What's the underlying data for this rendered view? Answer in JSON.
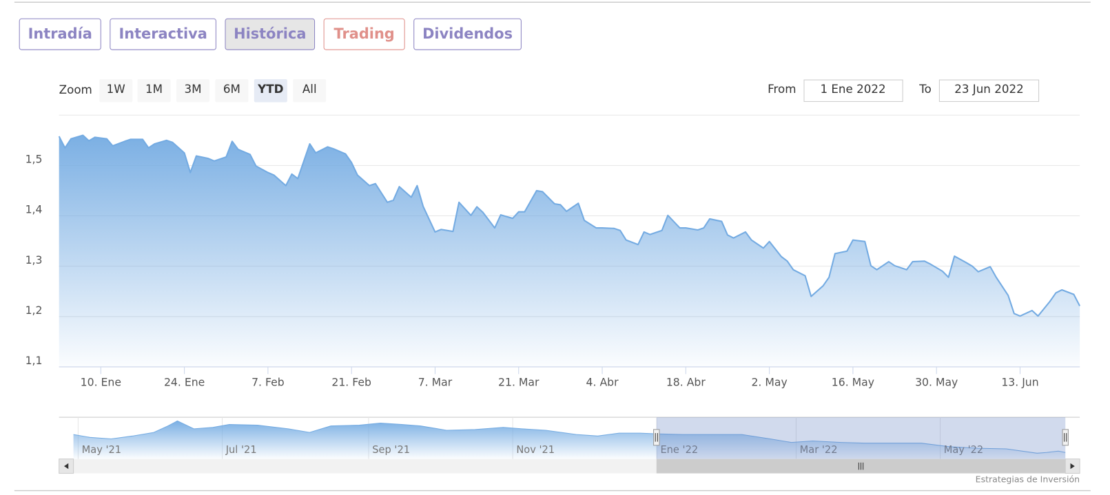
{
  "tabs": [
    "Intradía",
    "Interactiva",
    "Histórica",
    "Trading",
    "Dividendos"
  ],
  "tab_colors": [
    "#8c84c2",
    "#8c84c2",
    "#8c84c2",
    "#e0908a",
    "#8c84c2"
  ],
  "active_tab": "Histórica",
  "zoom": {
    "label": "Zoom",
    "buttons": [
      "1W",
      "1M",
      "3M",
      "6M",
      "YTD",
      "All"
    ],
    "selected": "YTD"
  },
  "date_range": {
    "from_label": "From",
    "from": "1 Ene 2022",
    "to_label": "To",
    "to": "23 Jun 2022"
  },
  "credits": "Estrategias de Inversión",
  "chart_data": [
    {
      "type": "area",
      "color": "#74abe2",
      "grid": true,
      "x": [
        3,
        4,
        5,
        7,
        8,
        9,
        11,
        12,
        14,
        15,
        17,
        18,
        19,
        21,
        22,
        24,
        25,
        26,
        28,
        29,
        31,
        32,
        33,
        35,
        36,
        38,
        39,
        41,
        42,
        43,
        45,
        46,
        48,
        49,
        51,
        52,
        53,
        55,
        56,
        58,
        59,
        60,
        62,
        63,
        64,
        66,
        67,
        69,
        70,
        72,
        73,
        74,
        76,
        77,
        79,
        80,
        81,
        83,
        84,
        86,
        87,
        88,
        90,
        91,
        93,
        94,
        96,
        97,
        98,
        100,
        101,
        102,
        104,
        105,
        107,
        108,
        110,
        111,
        112,
        114,
        115,
        116,
        118,
        119,
        121,
        122,
        124,
        125,
        126,
        128,
        129,
        131,
        132,
        133,
        135,
        136,
        138,
        139,
        140,
        142,
        143,
        145,
        146,
        148,
        149,
        151,
        152,
        153,
        155,
        156,
        157,
        159,
        160,
        162,
        163,
        164,
        166,
        167,
        169,
        170,
        171,
        173,
        174
      ],
      "values": [
        1.558,
        1.535,
        1.553,
        1.56,
        1.549,
        1.556,
        1.553,
        1.539,
        1.548,
        1.552,
        1.552,
        1.535,
        1.543,
        1.55,
        1.546,
        1.525,
        1.486,
        1.519,
        1.514,
        1.509,
        1.517,
        1.548,
        1.532,
        1.522,
        1.499,
        1.486,
        1.481,
        1.46,
        1.483,
        1.474,
        1.543,
        1.525,
        1.537,
        1.533,
        1.523,
        1.506,
        1.481,
        1.46,
        1.464,
        1.427,
        1.431,
        1.458,
        1.437,
        1.46,
        1.419,
        1.368,
        1.373,
        1.369,
        1.427,
        1.401,
        1.418,
        1.407,
        1.376,
        1.402,
        1.395,
        1.408,
        1.408,
        1.45,
        1.448,
        1.424,
        1.422,
        1.409,
        1.425,
        1.391,
        1.376,
        1.376,
        1.375,
        1.371,
        1.352,
        1.343,
        1.368,
        1.363,
        1.371,
        1.401,
        1.376,
        1.376,
        1.372,
        1.376,
        1.394,
        1.389,
        1.362,
        1.356,
        1.368,
        1.352,
        1.336,
        1.349,
        1.319,
        1.31,
        1.293,
        1.281,
        1.24,
        1.261,
        1.278,
        1.325,
        1.33,
        1.352,
        1.349,
        1.301,
        1.293,
        1.309,
        1.301,
        1.293,
        1.309,
        1.31,
        1.304,
        1.29,
        1.278,
        1.32,
        1.307,
        1.3,
        1.289,
        1.299,
        1.278,
        1.242,
        1.206,
        1.201,
        1.212,
        1.201,
        1.23,
        1.247,
        1.253,
        1.244,
        1.221
      ],
      "xlim": [
        3,
        174
      ],
      "xticks": [
        {
          "value": 10,
          "label": "10. Ene"
        },
        {
          "value": 24,
          "label": "24. Ene"
        },
        {
          "value": 38,
          "label": "7. Feb"
        },
        {
          "value": 52,
          "label": "21. Feb"
        },
        {
          "value": 66,
          "label": "7. Mar"
        },
        {
          "value": 80,
          "label": "21. Mar"
        },
        {
          "value": 94,
          "label": "4. Abr"
        },
        {
          "value": 108,
          "label": "18. Abr"
        },
        {
          "value": 122,
          "label": "2. May"
        },
        {
          "value": 136,
          "label": "16. May"
        },
        {
          "value": 150,
          "label": "30. May"
        },
        {
          "value": 164,
          "label": "13. Jun"
        }
      ],
      "ylim": [
        1.1,
        1.6
      ],
      "yticks": [
        {
          "value": 1.1,
          "label": "1,1"
        },
        {
          "value": 1.2,
          "label": "1,2"
        },
        {
          "value": 1.3,
          "label": "1,3"
        },
        {
          "value": 1.4,
          "label": "1,4"
        },
        {
          "value": 1.5,
          "label": "1,5"
        }
      ]
    },
    {
      "type": "navigator",
      "color": "#74abe2",
      "grid": true,
      "x": [
        -246,
        -239,
        -230,
        -221,
        -212,
        -206,
        -202,
        -195,
        -187,
        -180,
        -168,
        -155,
        -146,
        -137,
        -125,
        -116,
        -107,
        -99,
        -88,
        -76,
        -64,
        -56,
        -46,
        -33,
        -24,
        -15,
        -6,
        1,
        12,
        24,
        37,
        49,
        58,
        67,
        79,
        89,
        101,
        113,
        125,
        137,
        149,
        162,
        166,
        171,
        174
      ],
      "values": [
        1.536,
        1.487,
        1.462,
        1.511,
        1.572,
        1.682,
        1.768,
        1.633,
        1.658,
        1.707,
        1.695,
        1.633,
        1.572,
        1.682,
        1.695,
        1.731,
        1.707,
        1.682,
        1.609,
        1.621,
        1.658,
        1.633,
        1.609,
        1.536,
        1.511,
        1.56,
        1.56,
        1.548,
        1.536,
        1.536,
        1.536,
        1.462,
        1.401,
        1.426,
        1.401,
        1.389,
        1.389,
        1.389,
        1.328,
        1.303,
        1.291,
        1.218,
        1.23,
        1.254,
        1.23
      ],
      "xlim": [
        -246,
        174
      ],
      "xticks": [
        {
          "value": -244,
          "label": "May '21"
        },
        {
          "value": -183,
          "label": "Jul '21"
        },
        {
          "value": -121,
          "label": "Sep '21"
        },
        {
          "value": -60,
          "label": "Nov '21"
        },
        {
          "value": 1,
          "label": "Ene '22"
        },
        {
          "value": 60,
          "label": "Mar '22"
        },
        {
          "value": 121,
          "label": "May '22"
        }
      ],
      "ylim": [
        1.12,
        1.83
      ]
    }
  ]
}
